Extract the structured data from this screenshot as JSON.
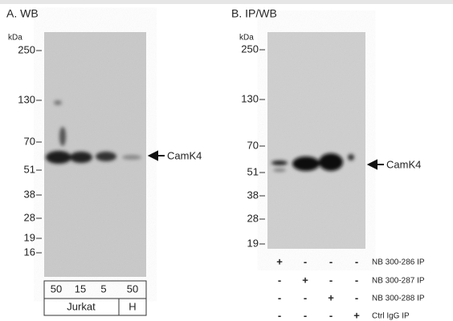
{
  "panel_a": {
    "title": "A. WB",
    "unit": "kDa",
    "markers": [
      "250",
      "130",
      "70",
      "51",
      "38",
      "28",
      "19",
      "16"
    ],
    "target": "CamK4",
    "lanes": [
      "50",
      "15",
      "5",
      "50"
    ],
    "groups": [
      "Jurkat",
      "H"
    ]
  },
  "panel_b": {
    "title": "B. IP/WB",
    "unit": "kDa",
    "markers": [
      "250",
      "130",
      "70",
      "51",
      "38",
      "28",
      "19"
    ],
    "target": "CamK4",
    "rows": [
      {
        "signs": [
          "+",
          "-",
          "-",
          "-"
        ],
        "label": "NB 300-286 IP"
      },
      {
        "signs": [
          "-",
          "+",
          "-",
          "-"
        ],
        "label": "NB 300-287 IP"
      },
      {
        "signs": [
          "-",
          "-",
          "+",
          "-"
        ],
        "label": "NB 300-288 IP"
      },
      {
        "signs": [
          "-",
          "-",
          "-",
          "+"
        ],
        "label": "Ctrl IgG IP"
      }
    ]
  }
}
